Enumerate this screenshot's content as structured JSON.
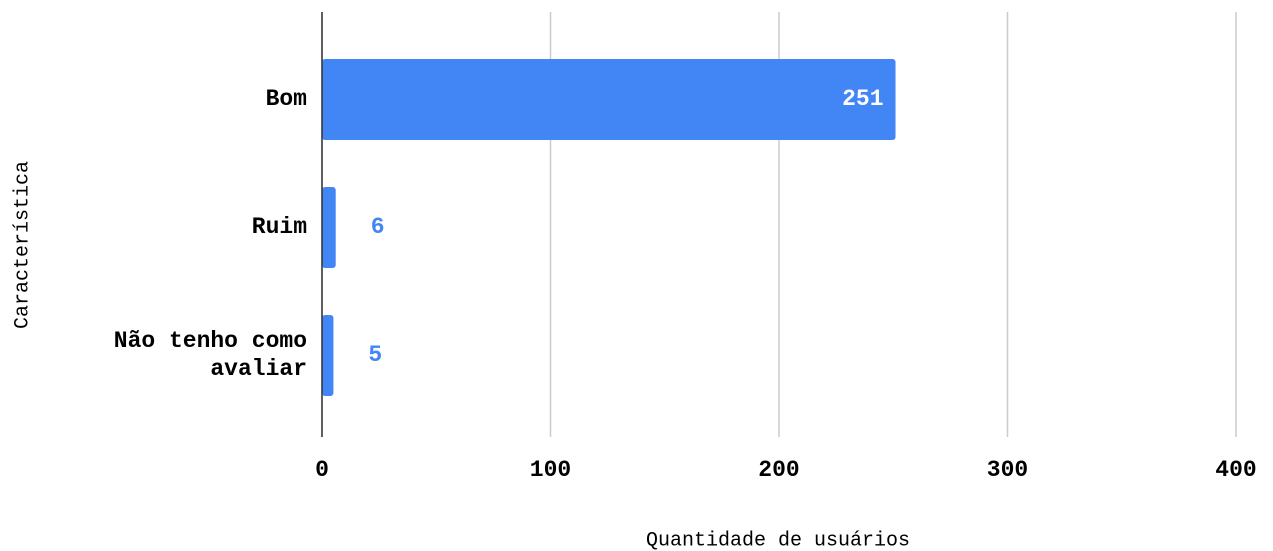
{
  "chart_data": {
    "type": "bar",
    "orientation": "horizontal",
    "categories": [
      "Bom",
      "Ruim",
      "Não tenho como avaliar"
    ],
    "values": [
      251,
      6,
      5
    ],
    "color": "#4285f4",
    "xlabel": "Quantidade de usuários",
    "ylabel": "Característica",
    "xlim": [
      0,
      400
    ],
    "xticks": [
      0,
      100,
      200,
      300,
      400
    ],
    "grid": true
  }
}
